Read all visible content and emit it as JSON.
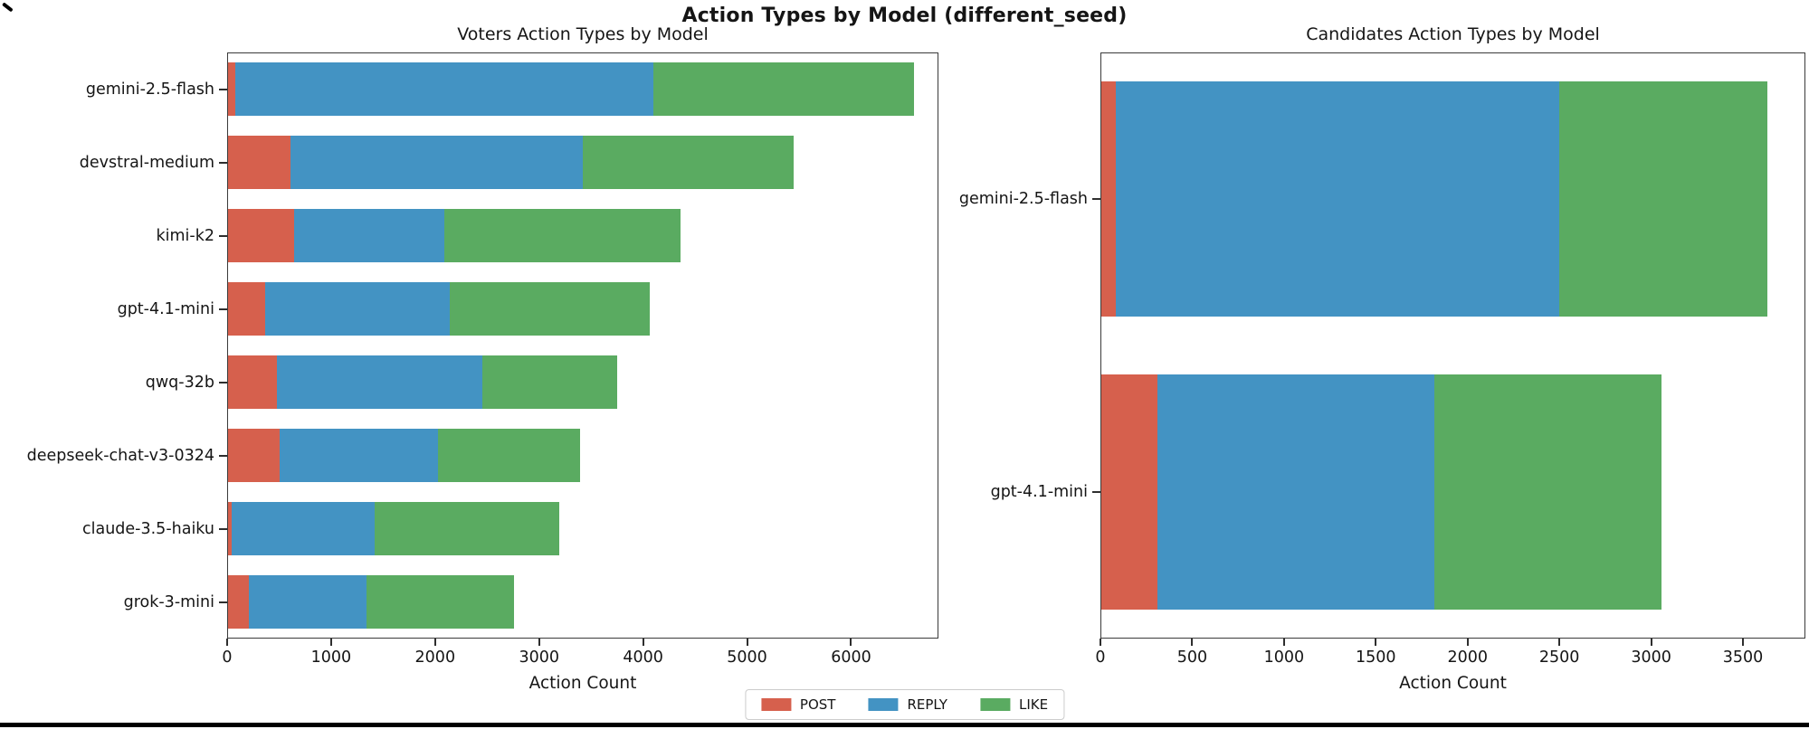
{
  "figure": {
    "suptitle": "Action Types by Model (different_seed)",
    "legend": [
      {
        "label": "POST",
        "color": "#d6604d"
      },
      {
        "label": "REPLY",
        "color": "#4393c3"
      },
      {
        "label": "LIKE",
        "color": "#5aab61"
      }
    ],
    "background": "#ffffff",
    "bottom_bar_color": "#000000"
  },
  "chart_data": [
    {
      "type": "bar",
      "orientation": "horizontal",
      "stacked": true,
      "title": "Voters Action Types by Model",
      "xlabel": "Action Count",
      "categories": [
        "gemini-2.5-flash",
        "devstral-medium",
        "kimi-k2",
        "gpt-4.1-mini",
        "qwq-32b",
        "deepseek-chat-v3-0324",
        "claude-3.5-haiku",
        "grok-3-mini"
      ],
      "series": [
        {
          "name": "POST",
          "color": "#d6604d",
          "values": [
            82,
            610,
            640,
            366,
            481,
            504,
            40,
            206
          ]
        },
        {
          "name": "REPLY",
          "color": "#4393c3",
          "values": [
            4018,
            2812,
            1452,
            1773,
            1969,
            1520,
            1380,
            1136
          ]
        },
        {
          "name": "LIKE",
          "color": "#5aab61",
          "values": [
            2505,
            2029,
            2268,
            1929,
            1297,
            1366,
            1778,
            1420
          ]
        }
      ],
      "totals": [
        6605,
        5451,
        4360,
        4068,
        3747,
        3390,
        3198,
        2762
      ],
      "xlim": [
        0,
        6840
      ],
      "xticks": [
        0,
        1000,
        2000,
        3000,
        4000,
        5000,
        6000
      ],
      "grid": false,
      "legend_position": "figure-bottom-center"
    },
    {
      "type": "bar",
      "orientation": "horizontal",
      "stacked": true,
      "title": "Candidates Action Types by Model",
      "xlabel": "Action Count",
      "categories": [
        "gemini-2.5-flash",
        "gpt-4.1-mini"
      ],
      "series": [
        {
          "name": "POST",
          "color": "#d6604d",
          "values": [
            82,
            309
          ]
        },
        {
          "name": "REPLY",
          "color": "#4393c3",
          "values": [
            2418,
            1512
          ]
        },
        {
          "name": "LIKE",
          "color": "#5aab61",
          "values": [
            1132,
            1233
          ]
        }
      ],
      "totals": [
        3632,
        3054
      ],
      "xlim": [
        0,
        3840
      ],
      "xticks": [
        0,
        500,
        1000,
        1500,
        2000,
        2500,
        3000,
        3500
      ],
      "grid": false,
      "legend_position": "figure-bottom-center"
    }
  ]
}
